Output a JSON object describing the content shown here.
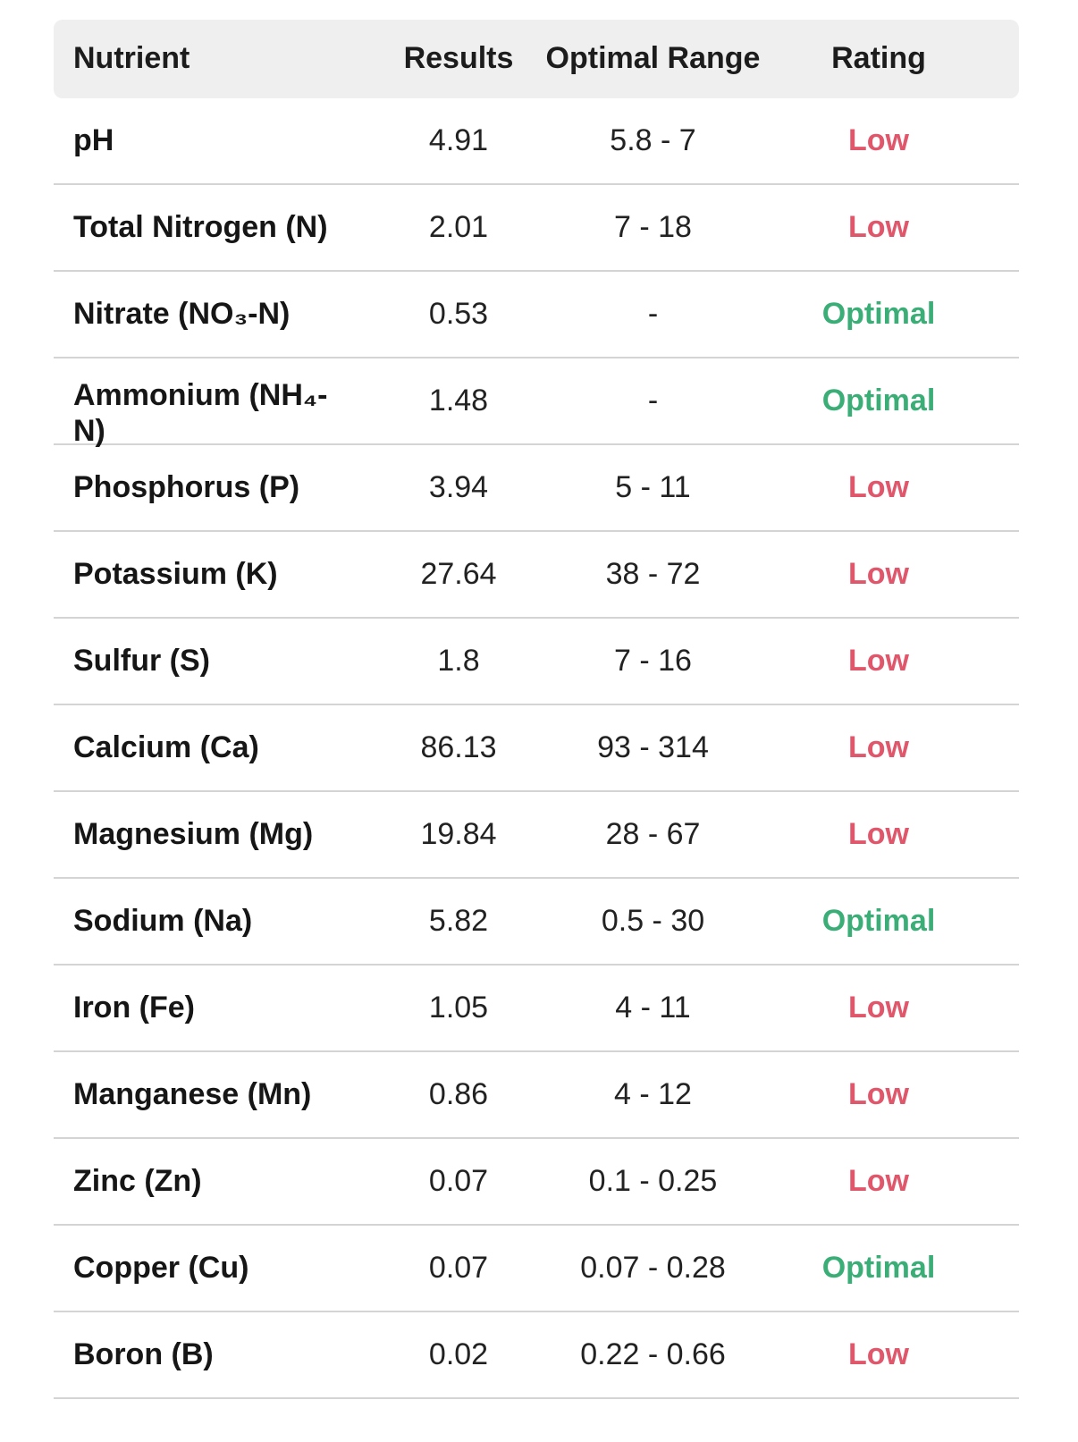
{
  "table": {
    "headers": {
      "nutrient": "Nutrient",
      "results": "Results",
      "optimal_range": "Optimal Range",
      "rating": "Rating"
    },
    "rows": [
      {
        "nutrient": "pH",
        "result": "4.91",
        "range": "5.8 - 7",
        "rating": "Low"
      },
      {
        "nutrient": "Total Nitrogen (N)",
        "result": "2.01",
        "range": "7 - 18",
        "rating": "Low"
      },
      {
        "nutrient": "Nitrate (NO₃-N)",
        "result": "0.53",
        "range": "-",
        "rating": "Optimal"
      },
      {
        "nutrient": "Ammonium (NH₄-N)",
        "result": "1.48",
        "range": "-",
        "rating": "Optimal"
      },
      {
        "nutrient": "Phosphorus (P)",
        "result": "3.94",
        "range": "5 - 11",
        "rating": "Low"
      },
      {
        "nutrient": "Potassium (K)",
        "result": "27.64",
        "range": "38 - 72",
        "rating": "Low"
      },
      {
        "nutrient": "Sulfur (S)",
        "result": "1.8",
        "range": "7 - 16",
        "rating": "Low"
      },
      {
        "nutrient": "Calcium (Ca)",
        "result": "86.13",
        "range": "93 - 314",
        "rating": "Low"
      },
      {
        "nutrient": "Magnesium (Mg)",
        "result": "19.84",
        "range": "28 - 67",
        "rating": "Low"
      },
      {
        "nutrient": "Sodium (Na)",
        "result": "5.82",
        "range": "0.5 - 30",
        "rating": "Optimal"
      },
      {
        "nutrient": "Iron (Fe)",
        "result": "1.05",
        "range": "4 - 11",
        "rating": "Low"
      },
      {
        "nutrient": "Manganese (Mn)",
        "result": "0.86",
        "range": "4 - 12",
        "rating": "Low"
      },
      {
        "nutrient": "Zinc (Zn)",
        "result": "0.07",
        "range": "0.1 - 0.25",
        "rating": "Low"
      },
      {
        "nutrient": "Copper (Cu)",
        "result": "0.07",
        "range": "0.07 - 0.28",
        "rating": "Optimal"
      },
      {
        "nutrient": "Boron (B)",
        "result": "0.02",
        "range": "0.22 - 0.66",
        "rating": "Low"
      }
    ]
  },
  "colors": {
    "low": "#e0566a",
    "optimal": "#3aae76",
    "header_bg": "#efefef",
    "divider": "#d4d4d4"
  }
}
